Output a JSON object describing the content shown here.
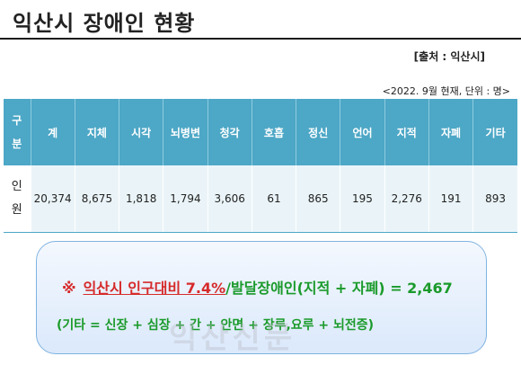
{
  "title": "익산시 장애인 현황",
  "source": "[출처 : 익산시]",
  "as_of": "<2022. 9월 현재, 단위 : 명>",
  "table": {
    "row_header_top": "구분",
    "row_header_data": "인원",
    "columns": [
      "계",
      "지체",
      "시각",
      "뇌병변",
      "청각",
      "호흡",
      "정신",
      "언어",
      "지적",
      "자폐",
      "기타"
    ],
    "values": [
      "20,374",
      "8,675",
      "1,818",
      "1,794",
      "3,606",
      "61",
      "865",
      "195",
      "2,276",
      "191",
      "893"
    ]
  },
  "summary": {
    "mark": "※",
    "highlight": "익산시 인구대비 7.4%",
    "rest": "/발달장애인(지적 + 자폐) = 2,467",
    "note": "(기타 = 신장 + 심장 + 간 + 안면 + 장루,요루 + 뇌전증)"
  },
  "watermark": "익산신문"
}
